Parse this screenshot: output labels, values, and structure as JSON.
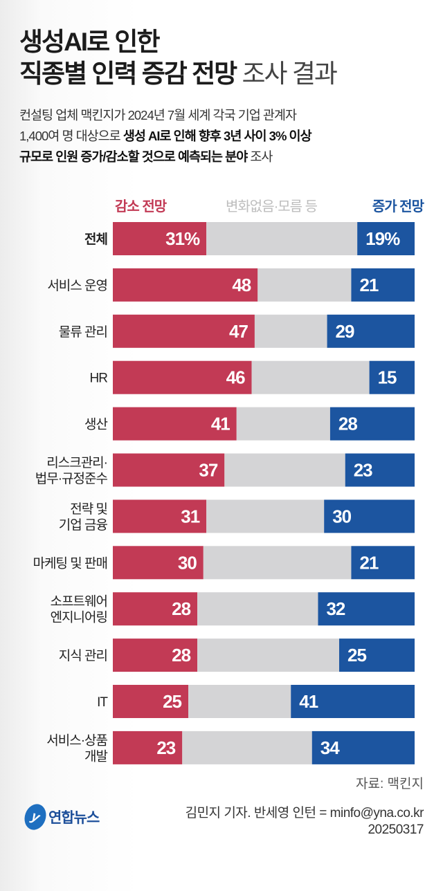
{
  "title": {
    "line1": "생성AI로 인한",
    "line2_bold": "직종별 인력 증감 전망",
    "line2_light": "조사 결과"
  },
  "description": {
    "line1": "컨설팅 업체 맥킨지가 2024년 7월 세계 각국 기업 관계자",
    "line2_plain": "1,400여 명 대상으로 ",
    "line2_bold": "생성 AI로 인해 향후 3년 사이 3% 이상",
    "line3_bold": "규모로 인원 증가/감소할 것으로 예측되는 분야",
    "line3_plain": " 조사"
  },
  "colors": {
    "decrease": "#c23a55",
    "neutral": "#d4d4d6",
    "increase": "#1c55a0"
  },
  "chart_data": {
    "type": "bar",
    "orientation": "horizontal",
    "stacked": true,
    "xlim": [
      0,
      100
    ],
    "unit": "%",
    "legend": {
      "placement": "top"
    },
    "categories": [
      "전체",
      "서비스 운영",
      "물류 관리",
      "HR",
      "생산",
      "리스크관리·\n법무·규정준수",
      "전략 및\n기업 금융",
      "마케팅 및 판매",
      "소프트웨어\n엔지니어링",
      "지식 관리",
      "IT",
      "서비스·상품\n개발"
    ],
    "series": [
      {
        "name": "감소 전망",
        "values": [
          31,
          48,
          47,
          46,
          41,
          37,
          31,
          30,
          28,
          28,
          25,
          23
        ]
      },
      {
        "name": "변화없음·모름 등",
        "values": [
          50,
          31,
          24,
          39,
          31,
          40,
          39,
          49,
          40,
          47,
          34,
          43
        ]
      },
      {
        "name": "증가 전망",
        "values": [
          19,
          21,
          29,
          15,
          28,
          23,
          30,
          21,
          32,
          25,
          41,
          34
        ]
      }
    ],
    "value_labels_first_row": [
      "31%",
      "19%"
    ]
  },
  "source": "자료: 맥킨지",
  "footer": {
    "logo_text": "연합뉴스",
    "author": "김민지 기자. 반세영 인턴 = minfo@yna.co.kr",
    "date": "20250317"
  }
}
